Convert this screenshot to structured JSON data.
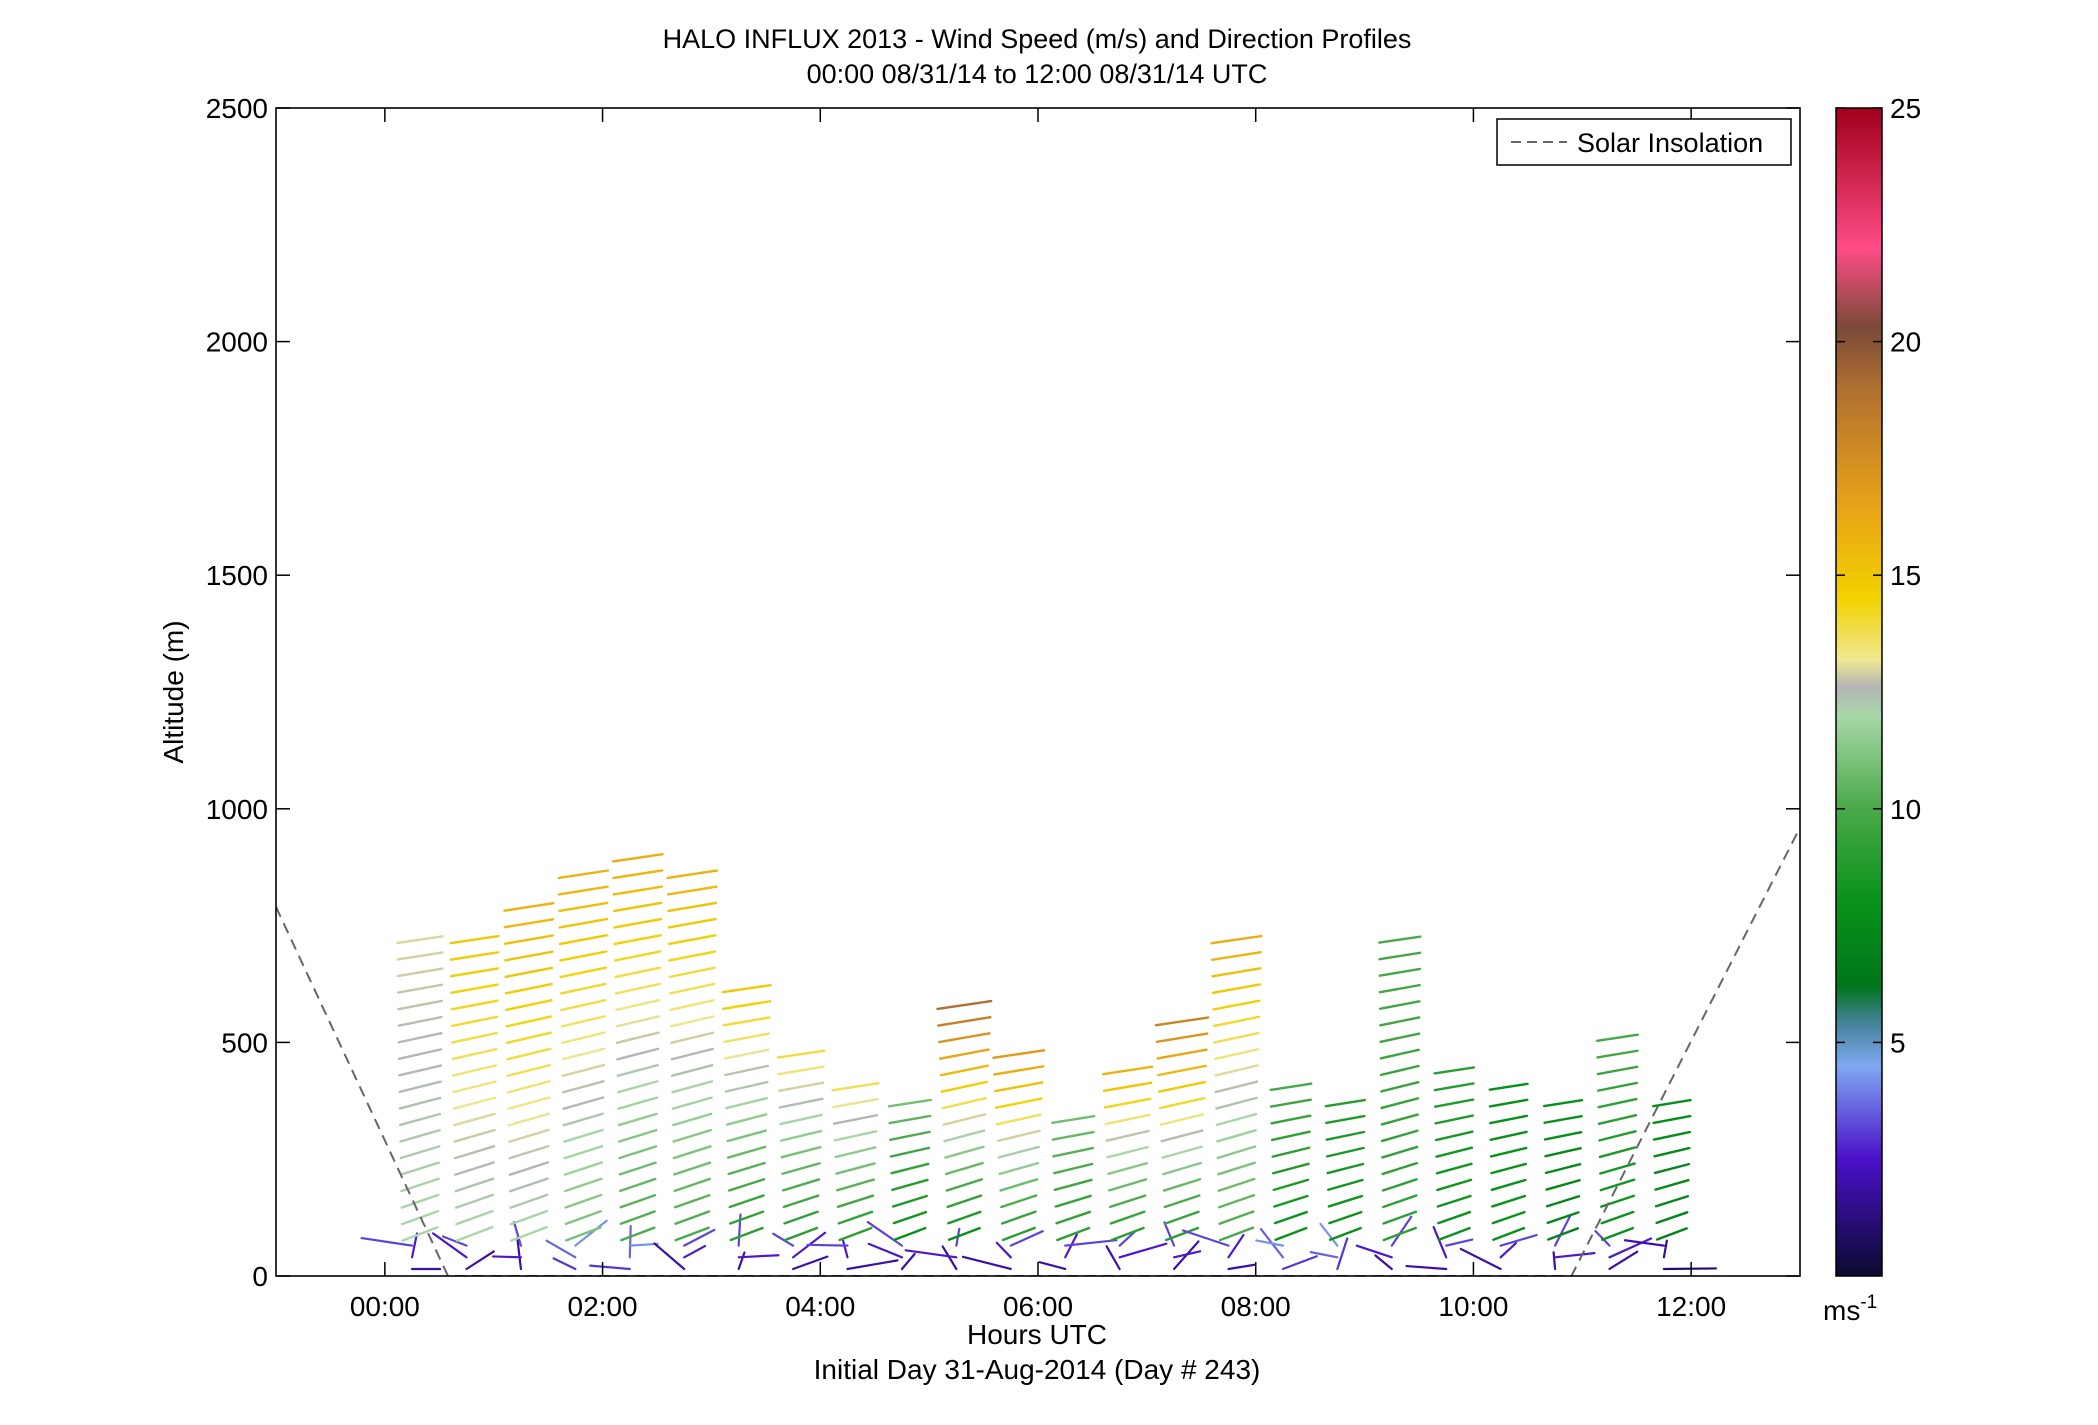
{
  "chart_data": {
    "type": "wind_barb_profile",
    "title": "HALO INFLUX 2013 - Wind Speed (m/s) and Direction Profiles",
    "subtitle": "00:00 08/31/14 to 12:00 08/31/14  UTC",
    "xlabel": "Hours UTC",
    "xlabel2": "Initial Day 31-Aug-2014 (Day # 243)",
    "ylabel": "Altitude (m)",
    "xlim_hours": [
      -1.0,
      13.0
    ],
    "ylim": [
      0,
      2500
    ],
    "x_ticks": [
      {
        "value": 0,
        "label": "00:00"
      },
      {
        "value": 2,
        "label": "02:00"
      },
      {
        "value": 4,
        "label": "04:00"
      },
      {
        "value": 6,
        "label": "06:00"
      },
      {
        "value": 8,
        "label": "08:00"
      },
      {
        "value": 10,
        "label": "10:00"
      },
      {
        "value": 12,
        "label": "12:00"
      }
    ],
    "y_ticks": [
      0,
      500,
      1000,
      1500,
      2000,
      2500
    ],
    "colorbar": {
      "range": [
        0,
        25
      ],
      "ticks": [
        5,
        10,
        15,
        20,
        25
      ],
      "unit_label": "ms",
      "unit_exponent": "-1",
      "stops": [
        {
          "v": 0,
          "c": "#0b0a2e"
        },
        {
          "v": 2.5,
          "c": "#4a10c8"
        },
        {
          "v": 4.5,
          "c": "#7fa8f2"
        },
        {
          "v": 5.5,
          "c": "#3f7f8f"
        },
        {
          "v": 6.2,
          "c": "#00761a"
        },
        {
          "v": 8,
          "c": "#08921a"
        },
        {
          "v": 10,
          "c": "#4aa94a"
        },
        {
          "v": 12,
          "c": "#a8d8a8"
        },
        {
          "v": 12.6,
          "c": "#b4b4b4"
        },
        {
          "v": 13.2,
          "c": "#efe890"
        },
        {
          "v": 14.5,
          "c": "#f2d200"
        },
        {
          "v": 16.5,
          "c": "#e8a218"
        },
        {
          "v": 19,
          "c": "#b07030"
        },
        {
          "v": 20.3,
          "c": "#7a4a38"
        },
        {
          "v": 22,
          "c": "#ff4c86"
        },
        {
          "v": 25,
          "c": "#a0001c"
        }
      ]
    },
    "legend": {
      "label": "Solar Insolation",
      "position": "top-right",
      "style": "dashed-gray"
    },
    "solar_insolation": [
      {
        "hour": -1.0,
        "alt": 790
      },
      {
        "hour": 0.58,
        "alt": 0
      },
      {
        "hour": 10.9,
        "alt": 0
      },
      {
        "hour": 13.0,
        "alt": 960
      }
    ],
    "profiles": [
      {
        "hour": 0.25,
        "top": 720,
        "hi": 13,
        "blt": 12,
        "surface": 2
      },
      {
        "hour": 0.75,
        "top": 720,
        "hi": 15,
        "blt": 12,
        "surface": 2
      },
      {
        "hour": 1.25,
        "top": 820,
        "hi": 16,
        "blt": 12,
        "surface": 2
      },
      {
        "hour": 1.75,
        "top": 880,
        "hi": 16,
        "blt": 11,
        "surface": 3
      },
      {
        "hour": 2.25,
        "top": 900,
        "hi": 16,
        "blt": 10,
        "surface": 3
      },
      {
        "hour": 2.75,
        "top": 880,
        "hi": 16,
        "blt": 10,
        "surface": 2
      },
      {
        "hour": 3.25,
        "top": 620,
        "hi": 15,
        "blt": 9,
        "surface": 2
      },
      {
        "hour": 3.75,
        "top": 480,
        "hi": 14,
        "blt": 9,
        "surface": 2
      },
      {
        "hour": 4.25,
        "top": 420,
        "hi": 14,
        "blt": 9,
        "surface": 2
      },
      {
        "hour": 4.75,
        "top": 380,
        "hi": 11,
        "blt": 8,
        "surface": 2
      },
      {
        "hour": 5.25,
        "top": 580,
        "hi": 19,
        "blt": 8,
        "surface": 2
      },
      {
        "hour": 5.75,
        "top": 480,
        "hi": 17,
        "blt": 9,
        "surface": 2
      },
      {
        "hour": 6.25,
        "top": 350,
        "hi": 11,
        "blt": 9,
        "surface": 2
      },
      {
        "hour": 6.75,
        "top": 450,
        "hi": 16,
        "blt": 9,
        "surface": 2
      },
      {
        "hour": 7.25,
        "top": 550,
        "hi": 18,
        "blt": 9,
        "surface": 2
      },
      {
        "hour": 7.75,
        "top": 720,
        "hi": 16,
        "blt": 10,
        "surface": 2
      },
      {
        "hour": 8.25,
        "top": 420,
        "hi": 10,
        "blt": 8,
        "surface": 3
      },
      {
        "hour": 8.75,
        "top": 390,
        "hi": 9,
        "blt": 8,
        "surface": 3
      },
      {
        "hour": 9.25,
        "top": 720,
        "hi": 10,
        "blt": 9,
        "surface": 2
      },
      {
        "hour": 9.75,
        "top": 450,
        "hi": 9,
        "blt": 8,
        "surface": 2
      },
      {
        "hour": 10.25,
        "top": 420,
        "hi": 8,
        "blt": 8,
        "surface": 2
      },
      {
        "hour": 10.75,
        "top": 380,
        "hi": 8,
        "blt": 7,
        "surface": 2
      },
      {
        "hour": 11.25,
        "top": 520,
        "hi": 10,
        "blt": 8,
        "surface": 2
      },
      {
        "hour": 11.75,
        "top": 400,
        "hi": 8,
        "blt": 7,
        "surface": 1
      }
    ]
  }
}
